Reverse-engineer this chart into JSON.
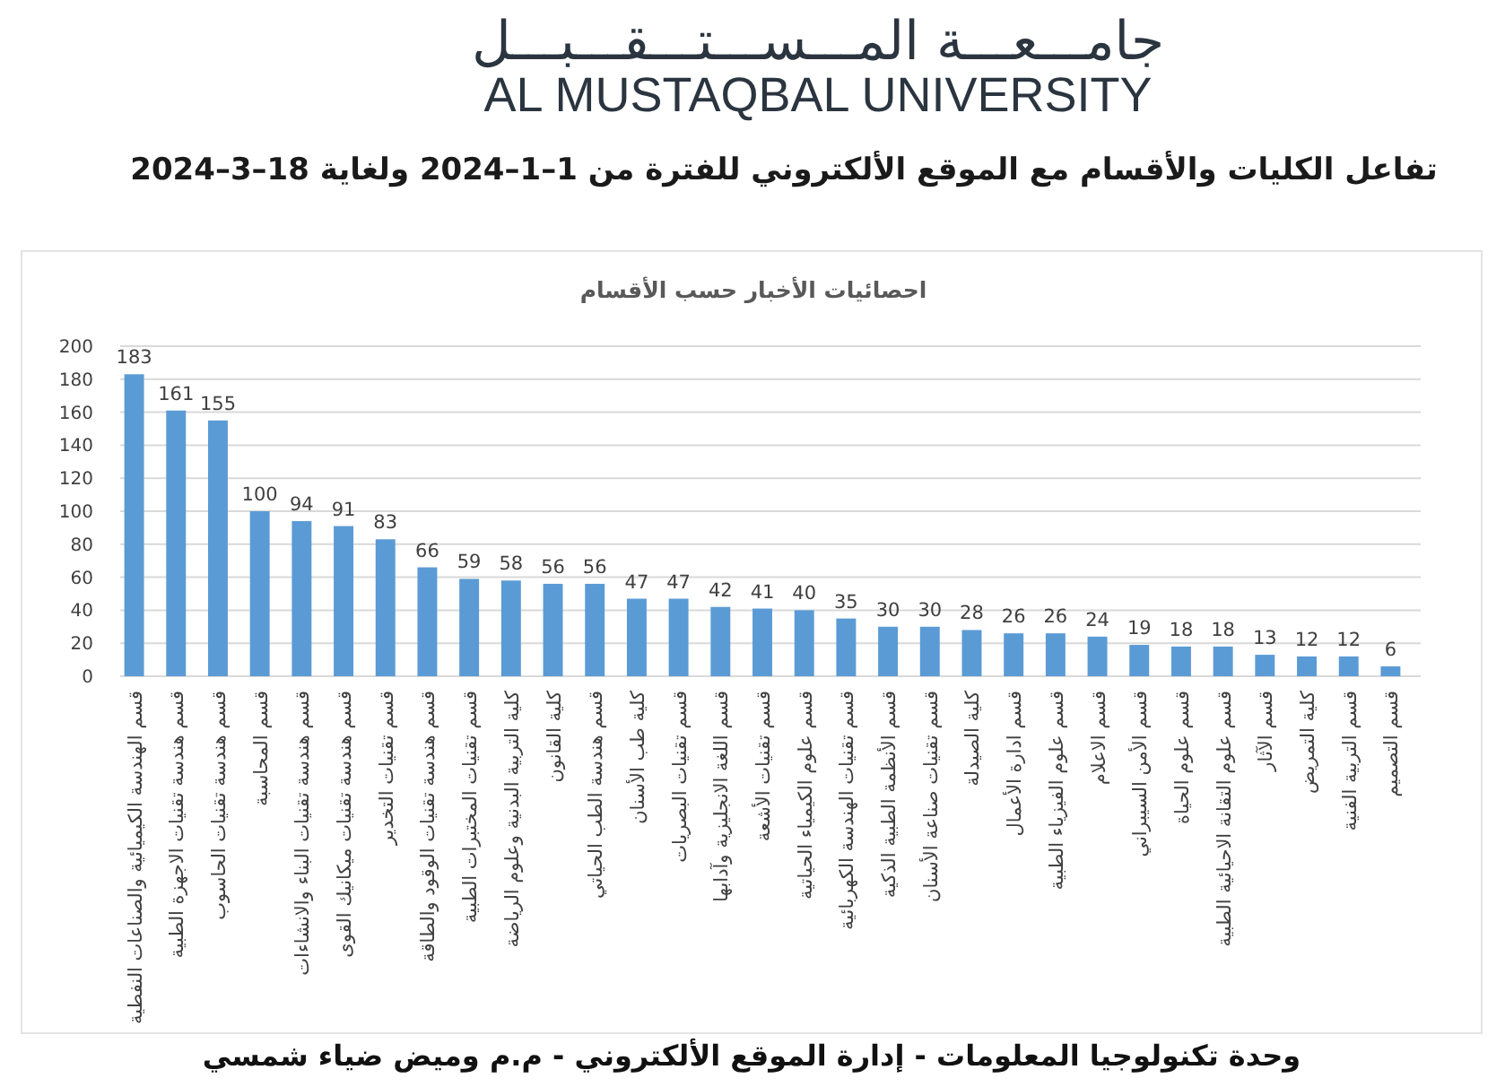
{
  "chart_data": {
    "type": "bar",
    "title": "تفاعل الكليات والأقسام مع الموقع الألكتروني للفترة من 1–1–2024 ولغاية 18–3–2024",
    "subtitle": "احصائيات الأخبار حسب الأقسام",
    "categories": [
      "قسم الهندسة الكيميائية والصناعات النفطية",
      "قسم هندسة تقنيات الاجهزة الطبية",
      "قسم هندسة تقنيات الحاسوب",
      "قسم المحاسبة",
      "قسم هندسة تقنيات البناء والانشاءات",
      "قسم هندسة تقنيات ميكانيك القوى",
      "قسم تقنيات التخدير",
      "قسم هندسة تقنيات الوقود والطاقة",
      "قسم تقنيات المختبرات الطبية",
      "كلية التربية البدنية وعلوم الرياضة",
      "كلية القانون",
      "قسم هندسة الطب الحياتي",
      "كلية طب الأسنان",
      "قسم تقنيات البصريات",
      "قسم اللغة الانجليزية وآدابها",
      "قسم تقنيات الأشعة",
      "قسم علوم الكيمياء الحياتية",
      "قسم تقنيات الهندسة الكهربائية",
      "قسم الأنظمة الطبية الذكية",
      "قسم تقنيات صناعة الأسنان",
      "كلية الصيدلة",
      "قسم ادارة الأعمال",
      "قسم علوم الفيزياء الطبية",
      "قسم الاعلام",
      "قسم الأمن السيبراني",
      "قسم علوم الحياة",
      "قسم علوم التقانة الاحيائية الطبية",
      "قسم الآثار",
      "كلية التمريض",
      "قسم التربية الفنية",
      "قسم التصميم"
    ],
    "values": [
      183,
      161,
      155,
      100,
      94,
      91,
      83,
      66,
      59,
      58,
      56,
      56,
      47,
      47,
      42,
      41,
      40,
      35,
      30,
      30,
      28,
      26,
      26,
      24,
      19,
      18,
      18,
      13,
      12,
      12,
      6
    ],
    "color": "#5b9bd5",
    "ylim": [
      0,
      200
    ],
    "yticks": [
      0,
      20,
      40,
      60,
      80,
      100,
      120,
      140,
      160,
      180,
      200
    ],
    "grid": "y",
    "data_labels": true,
    "annotations": [
      "جامـــعـــة المـــســـتـــقـــبـــل",
      "AL MUSTAQBAL UNIVERSITY",
      "وحدة تكنولوجيا المعلومات - إدارة الموقع الألكتروني - م.م وميض ضياء شمسي"
    ]
  }
}
